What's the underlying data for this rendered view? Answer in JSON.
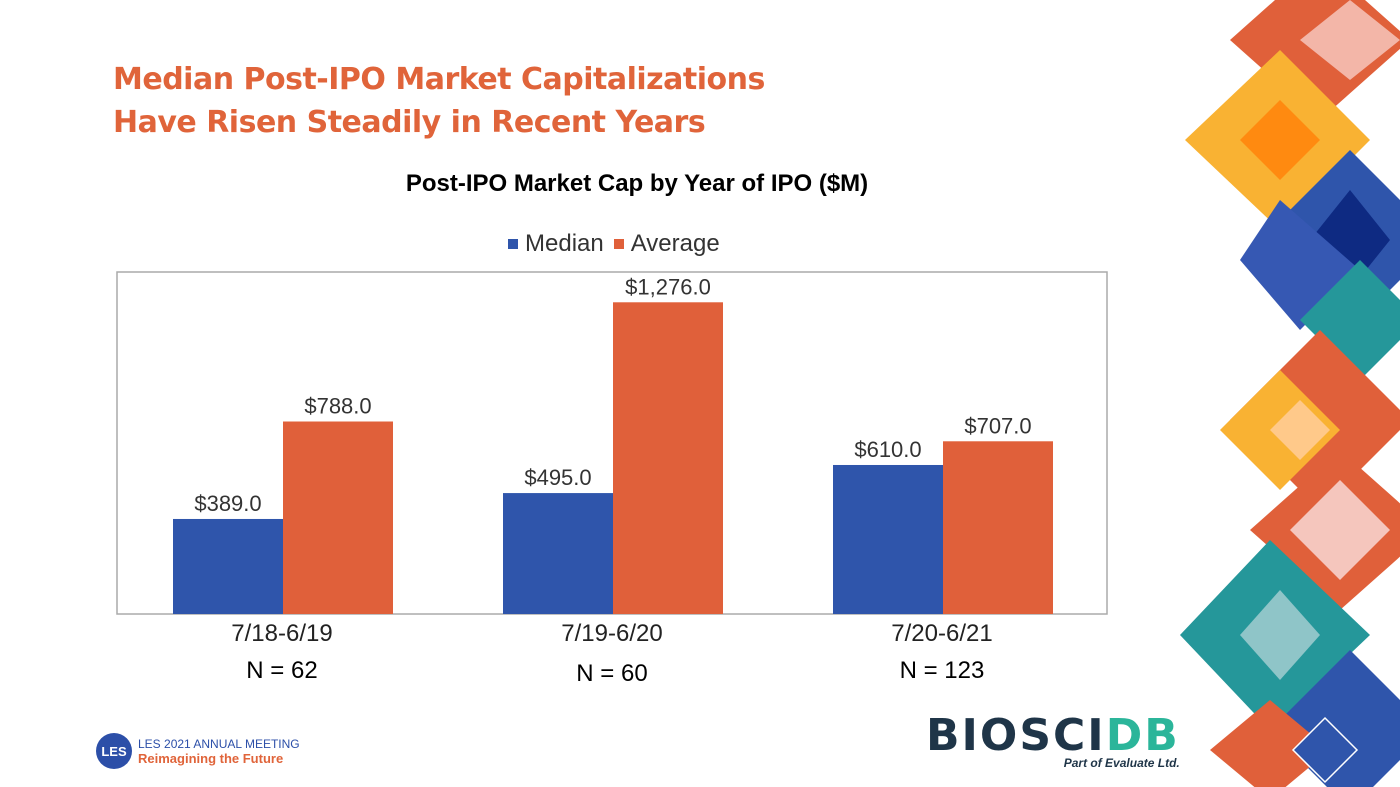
{
  "slide_title_line1": "Median Post-IPO Market Capitalizations",
  "slide_title_line2": "Have Risen Steadily in Recent Years",
  "chart_data": {
    "type": "bar",
    "title": "Post-IPO Market Cap by Year of IPO ($M)",
    "categories": [
      "7/18-6/19",
      "7/19-6/20",
      "7/20-6/21"
    ],
    "sample_sizes": [
      "N = 62",
      "N = 60",
      "N = 123"
    ],
    "series": [
      {
        "name": "Median",
        "color": "#2f55ab",
        "values": [
          389.0,
          495.0,
          610.0
        ],
        "labels": [
          "$389.0",
          "$495.0",
          "$610.0"
        ]
      },
      {
        "name": "Average",
        "color": "#e0603a",
        "values": [
          788.0,
          1276.0,
          707.0
        ],
        "labels": [
          "$788.0",
          "$1,276.0",
          "$707.0"
        ]
      }
    ],
    "ylim": [
      0,
      1400
    ],
    "xlabel": "",
    "ylabel": "",
    "legend": "top",
    "grid": false
  },
  "footer": {
    "les_badge": "LES",
    "les_line1": "LES 2021 ANNUAL MEETING",
    "les_line2": "Reimagining the Future",
    "bio_a": "BIO",
    "bio_b": "S",
    "bio_c": "CI",
    "bio_d": "DB",
    "bio_sub": "Part of Evaluate Ltd."
  }
}
